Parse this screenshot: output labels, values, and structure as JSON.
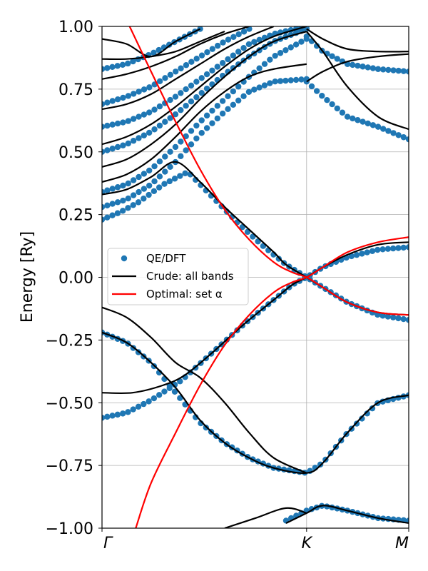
{
  "chart_data": {
    "type": "line",
    "xlabel": "",
    "ylabel": "Energy [Ry]",
    "ylim": [
      -1.0,
      1.0
    ],
    "xlim": [
      0,
      1
    ],
    "grid": true,
    "legend_position": "center-left",
    "x_ticks": [
      {
        "value": 0.0,
        "label": "Γ"
      },
      {
        "value": 0.667,
        "label": "K"
      },
      {
        "value": 1.0,
        "label": "M"
      }
    ],
    "y_ticks": [
      {
        "value": 1.0,
        "label": "1.00"
      },
      {
        "value": 0.75,
        "label": "0.75"
      },
      {
        "value": 0.5,
        "label": "0.50"
      },
      {
        "value": 0.25,
        "label": "0.25"
      },
      {
        "value": 0.0,
        "label": "0.00"
      },
      {
        "value": -0.25,
        "label": "−0.25"
      },
      {
        "value": -0.5,
        "label": "−0.50"
      },
      {
        "value": -0.75,
        "label": "−0.75"
      },
      {
        "value": -1.0,
        "label": "−1.00"
      }
    ],
    "legend": [
      {
        "label": "QE/DFT",
        "style": "marker",
        "color": "#1f77b4"
      },
      {
        "label": "Crude: all bands",
        "style": "line",
        "color": "#000000"
      },
      {
        "label": "Optimal: set α",
        "style": "line",
        "color": "#ff0000"
      }
    ],
    "series": [
      {
        "name": "QE/DFT",
        "style": "marker",
        "color": "#1f77b4",
        "bands": [
          {
            "x": [
              0.0,
              0.08,
              0.16,
              0.26,
              0.36,
              0.46,
              0.56,
              0.62,
              0.667,
              0.72,
              0.8,
              0.9,
              1.0
            ],
            "y": [
              -0.56,
              -0.54,
              -0.49,
              -0.41,
              -0.3,
              -0.19,
              -0.09,
              -0.03,
              0.0,
              0.04,
              0.08,
              0.11,
              0.12
            ]
          },
          {
            "x": [
              0.0,
              0.06,
              0.12,
              0.2,
              0.28,
              0.36,
              0.44,
              0.52,
              0.6,
              0.667,
              0.72,
              0.8,
              0.9,
              1.0
            ],
            "y": [
              0.23,
              0.26,
              0.3,
              0.37,
              0.42,
              0.32,
              0.22,
              0.13,
              0.05,
              0.0,
              -0.04,
              -0.1,
              -0.15,
              -0.17
            ]
          },
          {
            "x": [
              0.0,
              0.08,
              0.16,
              0.24,
              0.32,
              0.4,
              0.48,
              0.56,
              0.667,
              0.72,
              0.8,
              0.9,
              1.0
            ],
            "y": [
              -0.22,
              -0.26,
              -0.34,
              -0.46,
              -0.58,
              -0.66,
              -0.72,
              -0.76,
              -0.78,
              -0.74,
              -0.62,
              -0.5,
              -0.47
            ]
          },
          {
            "x": [
              0.0,
              0.08,
              0.16,
              0.24,
              0.32,
              0.4,
              0.48,
              0.56,
              0.667
            ],
            "y": [
              0.28,
              0.31,
              0.37,
              0.46,
              0.57,
              0.66,
              0.74,
              0.78,
              0.79
            ]
          },
          {
            "x": [
              0.0,
              0.08,
              0.16,
              0.24,
              0.32,
              0.4,
              0.48,
              0.56,
              0.667
            ],
            "y": [
              0.34,
              0.37,
              0.43,
              0.52,
              0.62,
              0.71,
              0.8,
              0.88,
              0.95
            ]
          },
          {
            "x": [
              0.0,
              0.08,
              0.16,
              0.24,
              0.32,
              0.4,
              0.48,
              0.56,
              0.667
            ],
            "y": [
              0.5,
              0.53,
              0.58,
              0.65,
              0.73,
              0.81,
              0.88,
              0.94,
              0.99
            ]
          },
          {
            "x": [
              0.0,
              0.08,
              0.16,
              0.24,
              0.32,
              0.4,
              0.48,
              0.56,
              0.667
            ],
            "y": [
              0.6,
              0.62,
              0.66,
              0.72,
              0.79,
              0.86,
              0.93,
              0.97,
              1.0
            ]
          },
          {
            "x": [
              0.0,
              0.08,
              0.16,
              0.24,
              0.32,
              0.4,
              0.48
            ],
            "y": [
              0.69,
              0.72,
              0.76,
              0.82,
              0.88,
              0.94,
              0.99
            ]
          },
          {
            "x": [
              0.0,
              0.08,
              0.16,
              0.24,
              0.32
            ],
            "y": [
              0.83,
              0.85,
              0.89,
              0.94,
              0.99
            ]
          },
          {
            "x": [
              0.667,
              0.72,
              0.8,
              0.9,
              1.0
            ],
            "y": [
              0.78,
              0.72,
              0.64,
              0.6,
              0.55
            ]
          },
          {
            "x": [
              0.667,
              0.72,
              0.8,
              0.9,
              1.0
            ],
            "y": [
              0.96,
              0.9,
              0.85,
              0.83,
              0.82
            ]
          },
          {
            "x": [
              0.6,
              0.667,
              0.72,
              0.8,
              0.9,
              1.0
            ],
            "y": [
              -0.97,
              -0.93,
              -0.91,
              -0.93,
              -0.96,
              -0.97
            ]
          }
        ]
      },
      {
        "name": "Crude: all bands",
        "style": "line",
        "color": "#000000",
        "bands": [
          {
            "x": [
              0.0,
              0.1,
              0.2,
              0.27,
              0.36,
              0.46,
              0.56,
              0.62,
              0.667,
              0.72,
              0.8,
              0.9,
              1.0
            ],
            "y": [
              -0.46,
              -0.46,
              -0.43,
              -0.39,
              -0.3,
              -0.19,
              -0.09,
              -0.03,
              0.0,
              0.04,
              0.09,
              0.13,
              0.14
            ]
          },
          {
            "x": [
              0.0,
              0.08,
              0.16,
              0.24,
              0.32,
              0.4,
              0.48,
              0.56,
              0.667
            ],
            "y": [
              -0.12,
              -0.16,
              -0.24,
              -0.34,
              -0.4,
              -0.5,
              -0.62,
              -0.72,
              -0.78
            ]
          },
          {
            "x": [
              0.0,
              0.08,
              0.16,
              0.24,
              0.32,
              0.4,
              0.48,
              0.56,
              0.667,
              0.72,
              0.8,
              0.9,
              1.0
            ],
            "y": [
              -0.22,
              -0.26,
              -0.34,
              -0.44,
              -0.57,
              -0.66,
              -0.72,
              -0.76,
              -0.78,
              -0.74,
              -0.62,
              -0.5,
              -0.47
            ]
          },
          {
            "x": [
              0.0,
              0.08,
              0.16,
              0.24,
              0.32,
              0.4,
              0.48,
              0.56,
              0.6,
              0.667,
              0.72,
              0.8,
              0.9,
              1.0
            ],
            "y": [
              0.33,
              0.35,
              0.4,
              0.46,
              0.38,
              0.28,
              0.19,
              0.1,
              0.05,
              0.0,
              -0.04,
              -0.1,
              -0.14,
              -0.15
            ]
          },
          {
            "x": [
              0.0,
              0.08,
              0.16,
              0.24,
              0.32,
              0.4,
              0.48,
              0.56,
              0.667
            ],
            "y": [
              0.38,
              0.41,
              0.47,
              0.56,
              0.66,
              0.74,
              0.8,
              0.83,
              0.85
            ]
          },
          {
            "x": [
              0.0,
              0.08,
              0.16,
              0.24,
              0.32,
              0.4,
              0.48,
              0.56,
              0.667
            ],
            "y": [
              0.44,
              0.47,
              0.53,
              0.61,
              0.71,
              0.8,
              0.88,
              0.94,
              0.98
            ]
          },
          {
            "x": [
              0.0,
              0.08,
              0.16,
              0.24,
              0.32,
              0.4,
              0.48,
              0.56,
              0.667
            ],
            "y": [
              0.53,
              0.56,
              0.61,
              0.68,
              0.76,
              0.84,
              0.91,
              0.96,
              1.0
            ]
          },
          {
            "x": [
              0.0,
              0.08,
              0.16,
              0.24,
              0.32,
              0.4,
              0.48,
              0.56
            ],
            "y": [
              0.67,
              0.69,
              0.73,
              0.79,
              0.85,
              0.91,
              0.96,
              1.0
            ]
          },
          {
            "x": [
              0.0,
              0.08,
              0.16,
              0.24,
              0.32,
              0.4,
              0.48
            ],
            "y": [
              0.79,
              0.81,
              0.84,
              0.88,
              0.93,
              0.97,
              1.0
            ]
          },
          {
            "x": [
              0.0,
              0.08,
              0.16,
              0.24,
              0.32,
              0.4
            ],
            "y": [
              0.87,
              0.87,
              0.88,
              0.9,
              0.94,
              0.98
            ]
          },
          {
            "x": [
              0.0,
              0.08,
              0.16,
              0.24,
              0.32
            ],
            "y": [
              0.95,
              0.93,
              0.88,
              0.94,
              0.99
            ]
          },
          {
            "x": [
              0.667,
              0.72,
              0.8,
              0.9,
              1.0
            ],
            "y": [
              0.98,
              0.9,
              0.76,
              0.64,
              0.59
            ]
          },
          {
            "x": [
              0.667,
              0.72,
              0.8,
              0.9,
              1.0
            ],
            "y": [
              0.78,
              0.82,
              0.86,
              0.88,
              0.89
            ]
          },
          {
            "x": [
              0.667,
              0.72,
              0.8,
              0.9,
              1.0
            ],
            "y": [
              0.99,
              0.95,
              0.91,
              0.9,
              0.9
            ]
          },
          {
            "x": [
              0.6,
              0.667,
              0.72,
              0.8,
              0.9,
              1.0
            ],
            "y": [
              -0.98,
              -0.94,
              -0.91,
              -0.93,
              -0.96,
              -0.98
            ]
          },
          {
            "x": [
              0.4,
              0.5,
              0.6,
              0.667
            ],
            "y": [
              -1.0,
              -0.96,
              -0.92,
              -0.94
            ]
          }
        ]
      },
      {
        "name": "Optimal: set α",
        "style": "line",
        "color": "#ff0000",
        "bands": [
          {
            "x": [
              0.09,
              0.16,
              0.24,
              0.32,
              0.4,
              0.48,
              0.56,
              0.62,
              0.667,
              0.72,
              0.8,
              0.9,
              1.0
            ],
            "y": [
              1.0,
              0.82,
              0.62,
              0.43,
              0.27,
              0.15,
              0.06,
              0.02,
              0.0,
              -0.04,
              -0.1,
              -0.14,
              -0.15
            ]
          },
          {
            "x": [
              0.11,
              0.16,
              0.24,
              0.32,
              0.4,
              0.48,
              0.56,
              0.62,
              0.667,
              0.72,
              0.8,
              0.9,
              1.0
            ],
            "y": [
              -1.0,
              -0.82,
              -0.62,
              -0.43,
              -0.27,
              -0.15,
              -0.06,
              -0.02,
              0.0,
              0.04,
              0.1,
              0.14,
              0.16
            ]
          }
        ]
      }
    ]
  }
}
